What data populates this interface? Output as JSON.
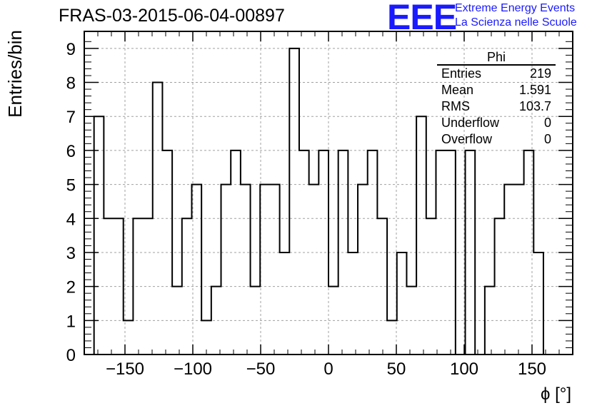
{
  "chart_data": {
    "type": "bar",
    "title": "FRAS-03-2015-06-04-00897",
    "xlabel": "ϕ [°]",
    "ylabel": "Entries/bin",
    "xlim": [
      -180,
      180
    ],
    "ylim": [
      0,
      9.5
    ],
    "bin_width": 7.2,
    "bin_start": -172.8,
    "values": [
      7,
      4,
      4,
      1,
      4,
      4,
      8,
      6,
      2,
      4,
      5,
      1,
      2,
      5,
      6,
      5,
      2,
      5,
      5,
      3,
      9,
      6,
      5,
      6,
      2,
      6,
      3,
      5,
      6,
      4,
      1,
      3,
      2,
      7,
      4,
      6,
      6,
      0,
      6,
      0,
      2,
      4,
      5,
      5,
      6,
      3
    ],
    "xticks": [
      "−150",
      "−100",
      "−50",
      "0",
      "50",
      "100",
      "150"
    ],
    "xtick_values": [
      -150,
      -100,
      -50,
      0,
      50,
      100,
      150
    ],
    "yticks": [
      "0",
      "1",
      "2",
      "3",
      "4",
      "5",
      "6",
      "7",
      "8",
      "9"
    ],
    "ytick_values": [
      0,
      1,
      2,
      3,
      4,
      5,
      6,
      7,
      8,
      9
    ],
    "grid": true,
    "style": "step-histogram",
    "line_color": "#000000",
    "grid_color": "#a0a0a0"
  },
  "stats_box": {
    "title": "Phi",
    "rows": [
      {
        "label": "Entries",
        "value": "219"
      },
      {
        "label": "Mean",
        "value": "1.591"
      },
      {
        "label": "RMS",
        "value": "103.7"
      },
      {
        "label": "Underflow",
        "value": "0"
      },
      {
        "label": "Overflow",
        "value": "0"
      }
    ]
  },
  "logo": {
    "mark": "EEE",
    "line1": "Extreme Energy Events",
    "line2": "La Scienza nelle Scuole",
    "color": "#1a1aff"
  }
}
